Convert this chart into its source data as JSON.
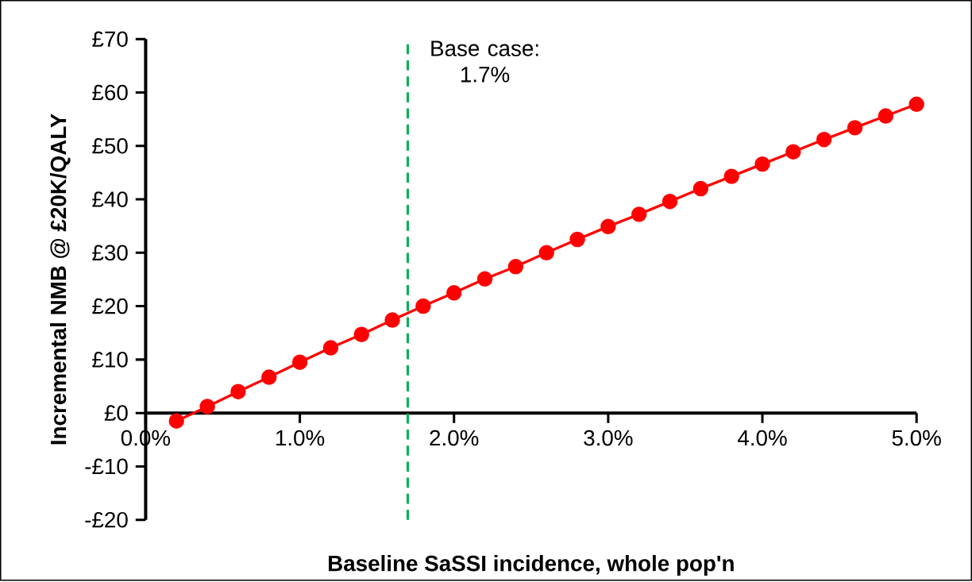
{
  "chart_data": {
    "type": "line",
    "xlabel": "Baseline SaSSI incidence, whole pop'n",
    "ylabel": "Incremental NMB @ £20K/QALY",
    "x": [
      0.2,
      0.4,
      0.6,
      0.8,
      1.0,
      1.2,
      1.4,
      1.6,
      1.8,
      2.0,
      2.2,
      2.4,
      2.6,
      2.8,
      3.0,
      3.2,
      3.4,
      3.6,
      3.8,
      4.0,
      4.2,
      4.4,
      4.6,
      4.8,
      5.0
    ],
    "series": [
      {
        "color": "#ff0000",
        "values": [
          -1.5,
          1.2,
          4.0,
          6.7,
          9.5,
          12.2,
          14.7,
          17.4,
          20.0,
          22.5,
          25.1,
          27.4,
          30.0,
          32.5,
          34.9,
          37.2,
          39.6,
          42.0,
          44.3,
          46.6,
          48.9,
          51.2,
          53.4,
          55.6,
          57.8
        ]
      }
    ],
    "xlim": [
      0,
      5
    ],
    "xticks": [
      {
        "value": 0,
        "label": "0.0%"
      },
      {
        "value": 1,
        "label": "1.0%"
      },
      {
        "value": 2,
        "label": "2.0%"
      },
      {
        "value": 3,
        "label": "3.0%"
      },
      {
        "value": 4,
        "label": "4.0%"
      },
      {
        "value": 5,
        "label": "5.0%"
      }
    ],
    "ylim": [
      -20,
      70
    ],
    "yticks": [
      {
        "value": -20,
        "label": "-£20"
      },
      {
        "value": -10,
        "label": "-£10"
      },
      {
        "value": 0,
        "label": "£0"
      },
      {
        "value": 10,
        "label": "£10"
      },
      {
        "value": 20,
        "label": "£20"
      },
      {
        "value": 30,
        "label": "£30"
      },
      {
        "value": 40,
        "label": "£40"
      },
      {
        "value": 50,
        "label": "£50"
      },
      {
        "value": 60,
        "label": "£60"
      },
      {
        "value": 70,
        "label": "£70"
      }
    ],
    "ref_lines": [
      {
        "axis": "x",
        "value": 1.7,
        "label": "Base case: 1.7%",
        "color": "#00b050",
        "line_style": "dashed"
      }
    ],
    "grid": false,
    "marker": "circle",
    "line_style": "solid"
  }
}
